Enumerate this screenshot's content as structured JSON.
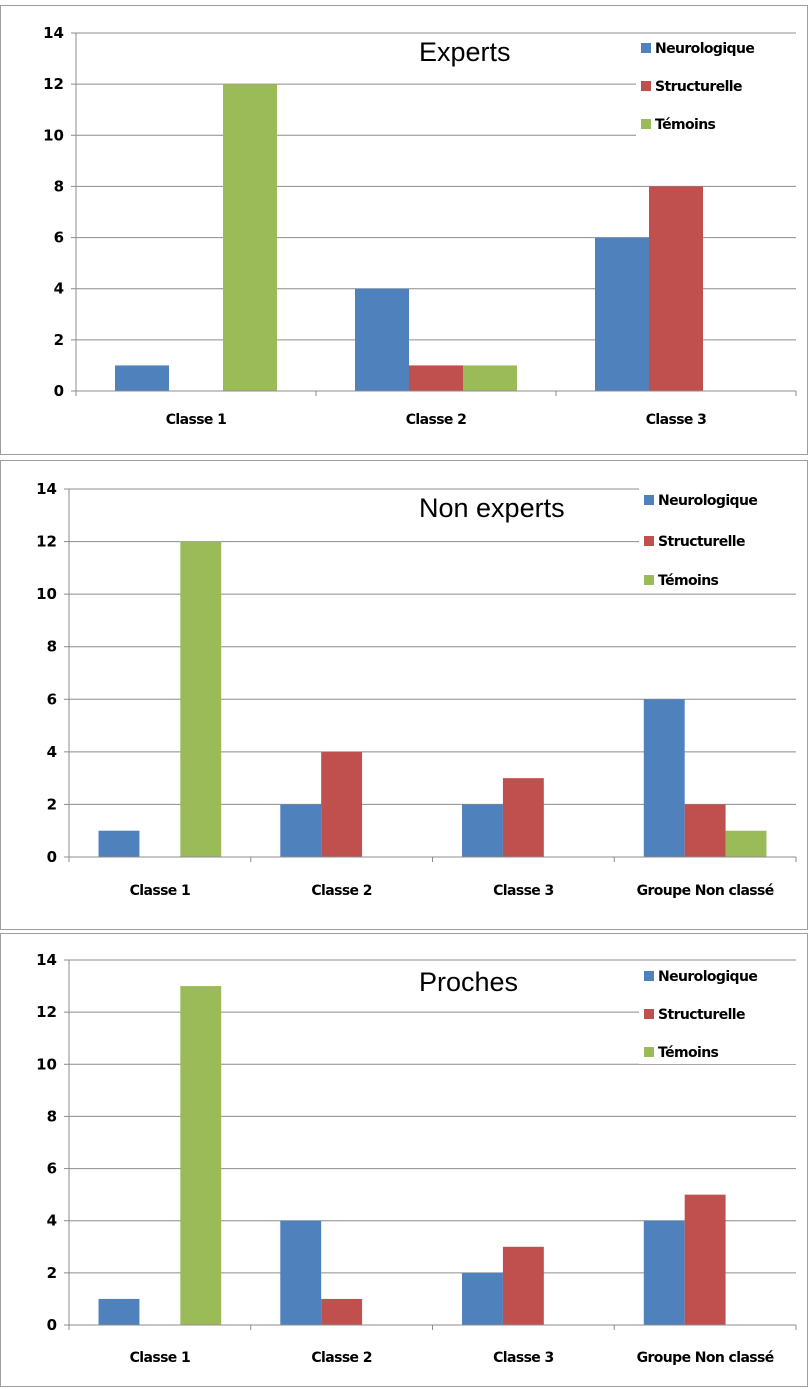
{
  "chart_data": [
    {
      "type": "bar",
      "title": "Experts",
      "categories": [
        "Classe 1",
        "Classe 2",
        "Classe 3"
      ],
      "series": [
        {
          "name": "Neurologique",
          "values": [
            1,
            4,
            6
          ]
        },
        {
          "name": "Structurelle",
          "values": [
            0,
            1,
            8
          ]
        },
        {
          "name": "Témoins",
          "values": [
            12,
            1,
            0
          ]
        }
      ],
      "ylim": [
        0,
        14
      ],
      "yticks": [
        "0",
        "2",
        "4",
        "6",
        "8",
        "10",
        "12",
        "14"
      ],
      "grid": true,
      "legend": "top-right",
      "colors": [
        "#4f81bd",
        "#c0504d",
        "#9bbb59"
      ]
    },
    {
      "type": "bar",
      "title": "Non experts",
      "categories": [
        "Classe 1",
        "Classe 2",
        "Classe 3",
        "Groupe Non classé"
      ],
      "series": [
        {
          "name": "Neurologique",
          "values": [
            1,
            2,
            2,
            6
          ]
        },
        {
          "name": "Structurelle",
          "values": [
            0,
            4,
            3,
            2
          ]
        },
        {
          "name": "Témoins",
          "values": [
            12,
            0,
            0,
            1
          ]
        }
      ],
      "ylim": [
        0,
        14
      ],
      "yticks": [
        "0",
        "2",
        "4",
        "6",
        "8",
        "10",
        "12",
        "14"
      ],
      "grid": true,
      "legend": "top-right",
      "colors": [
        "#4f81bd",
        "#c0504d",
        "#9bbb59"
      ]
    },
    {
      "type": "bar",
      "title": "Proches",
      "categories": [
        "Classe 1",
        "Classe 2",
        "Classe 3",
        "Groupe Non classé"
      ],
      "series": [
        {
          "name": "Neurologique",
          "values": [
            1,
            4,
            2,
            4
          ]
        },
        {
          "name": "Structurelle",
          "values": [
            0,
            1,
            3,
            5
          ]
        },
        {
          "name": "Témoins",
          "values": [
            13,
            0,
            0,
            0
          ]
        }
      ],
      "ylim": [
        0,
        14
      ],
      "yticks": [
        "0",
        "2",
        "4",
        "6",
        "8",
        "10",
        "12",
        "14"
      ],
      "grid": true,
      "legend": "top-right",
      "colors": [
        "#4f81bd",
        "#c0504d",
        "#9bbb59"
      ]
    }
  ]
}
